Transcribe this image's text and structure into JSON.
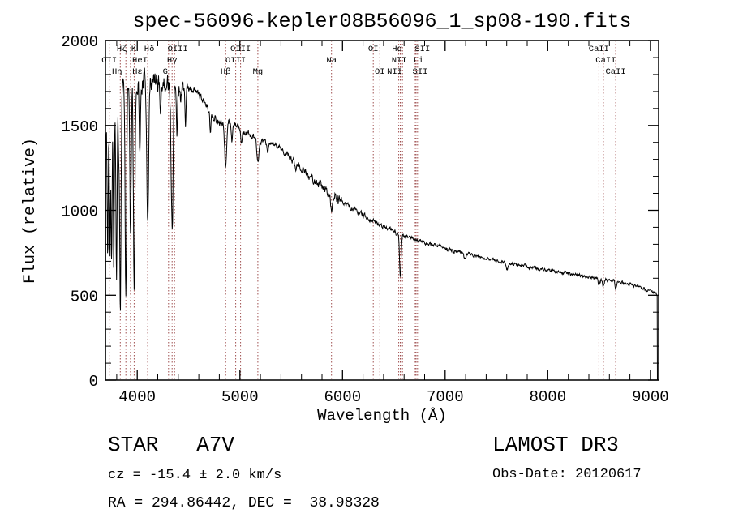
{
  "window": {
    "background": "#ffffff"
  },
  "chart_data": {
    "type": "line",
    "title": "spec-56096-kepler08B56096_1_sp08-190.fits",
    "xlabel": "Wavelength (Å)",
    "ylabel": "Flux (relative)",
    "xlim": [
      3690,
      9080
    ],
    "ylim": [
      0,
      2000
    ],
    "xticks": [
      4000,
      5000,
      6000,
      7000,
      8000,
      9000
    ],
    "x_minor_step": 200,
    "yticks": [
      0,
      500,
      1000,
      1500,
      2000
    ],
    "y_minor_step": 100,
    "line_color": "#000000",
    "marker_line_color": "#a05050",
    "marker_label_color": "#1a1a1a",
    "seed": 11,
    "grid": false,
    "spectral_lines": [
      {
        "label": "Hζ",
        "wl": 3889,
        "row": 1,
        "dx": -5
      },
      {
        "label": "K",
        "wl": 3934,
        "row": 1,
        "dx": 4
      },
      {
        "label": "Hδ",
        "wl": 4102,
        "row": 1,
        "dx": 2
      },
      {
        "label": "OII",
        "wl": 3727,
        "row": 2,
        "dx": 0
      },
      {
        "label": "HeI",
        "wl": 4026,
        "row": 2,
        "dx": 0
      },
      {
        "label": "Hη",
        "wl": 3835,
        "row": 3,
        "dx": -4
      },
      {
        "label": "Hε",
        "wl": 3970,
        "row": 3,
        "dx": 4
      },
      {
        "label": "G",
        "wl": 4305,
        "row": 3,
        "dx": -4
      },
      {
        "label": "Hγ",
        "wl": 4340,
        "row": 2,
        "dx": 0
      },
      {
        "label": "OIII",
        "wl": 4363,
        "row": 1,
        "dx": 4
      },
      {
        "label": "Hβ",
        "wl": 4861,
        "row": 3,
        "dx": 0
      },
      {
        "label": "OIII",
        "wl": 4959,
        "row": 2,
        "dx": 0
      },
      {
        "label": "OIII",
        "wl": 5007,
        "row": 1,
        "dx": 0
      },
      {
        "label": "Mg",
        "wl": 5175,
        "row": 3,
        "dx": 0
      },
      {
        "label": "Na",
        "wl": 5893,
        "row": 2,
        "dx": 0
      },
      {
        "label": "OI",
        "wl": 6300,
        "row": 1,
        "dx": 0
      },
      {
        "label": "OI",
        "wl": 6364,
        "row": 3,
        "dx": 0
      },
      {
        "label": "NII",
        "wl": 6548,
        "row": 3,
        "dx": -5
      },
      {
        "label": "Hα",
        "wl": 6563,
        "row": 1,
        "dx": -4
      },
      {
        "label": "NII",
        "wl": 6584,
        "row": 2,
        "dx": -4
      },
      {
        "label": "Li",
        "wl": 6708,
        "row": 2,
        "dx": 4
      },
      {
        "label": "SII",
        "wl": 6717,
        "row": 3,
        "dx": 5
      },
      {
        "label": "SII",
        "wl": 6731,
        "row": 1,
        "dx": 6
      },
      {
        "label": "CaII",
        "wl": 8498,
        "row": 1,
        "dx": 0
      },
      {
        "label": "CaII",
        "wl": 8542,
        "row": 2,
        "dx": 3
      },
      {
        "label": "CaII",
        "wl": 8662,
        "row": 3,
        "dx": 0
      }
    ],
    "continuum": {
      "format": [
        "wavelength_A",
        "flux"
      ],
      "rows": [
        [
          3693,
          1400
        ],
        [
          3710,
          1560
        ],
        [
          3730,
          1620
        ],
        [
          3760,
          1660
        ],
        [
          3800,
          1700
        ],
        [
          3850,
          1730
        ],
        [
          3900,
          1745
        ],
        [
          3950,
          1755
        ],
        [
          4000,
          1760
        ],
        [
          4100,
          1760
        ],
        [
          4200,
          1755
        ],
        [
          4300,
          1745
        ],
        [
          4400,
          1735
        ],
        [
          4500,
          1720
        ],
        [
          4600,
          1690
        ],
        [
          4650,
          1650
        ],
        [
          4700,
          1590
        ],
        [
          4750,
          1540
        ],
        [
          4800,
          1515
        ],
        [
          4860,
          1505
        ],
        [
          4900,
          1515
        ],
        [
          4950,
          1505
        ],
        [
          5000,
          1485
        ],
        [
          5050,
          1465
        ],
        [
          5100,
          1445
        ],
        [
          5150,
          1425
        ],
        [
          5200,
          1405
        ],
        [
          5250,
          1400
        ],
        [
          5300,
          1395
        ],
        [
          5350,
          1385
        ],
        [
          5400,
          1365
        ],
        [
          5450,
          1335
        ],
        [
          5500,
          1300
        ],
        [
          5550,
          1270
        ],
        [
          5600,
          1240
        ],
        [
          5650,
          1212
        ],
        [
          5700,
          1185
        ],
        [
          5750,
          1160
        ],
        [
          5800,
          1138
        ],
        [
          5850,
          1115
        ],
        [
          5900,
          1090
        ],
        [
          5950,
          1068
        ],
        [
          6000,
          1048
        ],
        [
          6100,
          1010
        ],
        [
          6200,
          972
        ],
        [
          6300,
          938
        ],
        [
          6400,
          905
        ],
        [
          6500,
          875
        ],
        [
          6600,
          852
        ],
        [
          6700,
          832
        ],
        [
          6800,
          812
        ],
        [
          6900,
          794
        ],
        [
          7000,
          777
        ],
        [
          7100,
          761
        ],
        [
          7200,
          746
        ],
        [
          7300,
          731
        ],
        [
          7400,
          717
        ],
        [
          7500,
          704
        ],
        [
          7600,
          691
        ],
        [
          7700,
          679
        ],
        [
          7800,
          668
        ],
        [
          7900,
          657
        ],
        [
          8000,
          647
        ],
        [
          8100,
          637
        ],
        [
          8200,
          627
        ],
        [
          8300,
          617
        ],
        [
          8400,
          608
        ],
        [
          8500,
          598
        ],
        [
          8600,
          588
        ],
        [
          8700,
          577
        ],
        [
          8800,
          564
        ],
        [
          8900,
          547
        ],
        [
          9000,
          520
        ],
        [
          9080,
          498
        ]
      ]
    },
    "absorption_lines": {
      "format": [
        "wavelength_A",
        "depth_flux",
        "sigma_A"
      ],
      "rows": [
        [
          3712,
          850,
          5
        ],
        [
          3734,
          900,
          5
        ],
        [
          3750,
          950,
          5
        ],
        [
          3771,
          1000,
          5.5
        ],
        [
          3798,
          1080,
          6
        ],
        [
          3819,
          350,
          5
        ],
        [
          3835,
          1380,
          6.5
        ],
        [
          3889,
          1310,
          7
        ],
        [
          3934,
          880,
          7
        ],
        [
          3970,
          1180,
          7.5
        ],
        [
          4026,
          430,
          6
        ],
        [
          4102,
          780,
          9
        ],
        [
          4227,
          200,
          5
        ],
        [
          4340,
          860,
          9
        ],
        [
          4388,
          250,
          5
        ],
        [
          4471,
          220,
          5
        ],
        [
          4713,
          130,
          5
        ],
        [
          4861,
          245,
          10
        ],
        [
          4922,
          110,
          6
        ],
        [
          5015,
          90,
          6
        ],
        [
          5175,
          135,
          9
        ],
        [
          5270,
          70,
          7
        ],
        [
          5893,
          95,
          9
        ],
        [
          6563,
          245,
          8
        ],
        [
          7190,
          30,
          10
        ],
        [
          7605,
          35,
          10
        ],
        [
          8498,
          35,
          7
        ],
        [
          8542,
          45,
          7
        ],
        [
          8662,
          40,
          7
        ]
      ]
    },
    "noise": [
      {
        "to": 4450,
        "amp": 58
      },
      {
        "to": 4900,
        "amp": 22
      },
      {
        "to": 5500,
        "amp": 15
      },
      {
        "to": 6000,
        "amp": 23
      },
      {
        "to": 6400,
        "amp": 13
      },
      {
        "to": 7200,
        "amp": 11
      },
      {
        "to": 9100,
        "amp": 9
      }
    ]
  },
  "annotations": {
    "star_class": "STAR   A7V",
    "survey": "LAMOST DR3",
    "cz": "cz = -15.4 ± 2.0 km/s",
    "obs_date": "Obs-Date: 20120617",
    "ra_dec": "RA = 294.86442, DEC =  38.98328"
  }
}
